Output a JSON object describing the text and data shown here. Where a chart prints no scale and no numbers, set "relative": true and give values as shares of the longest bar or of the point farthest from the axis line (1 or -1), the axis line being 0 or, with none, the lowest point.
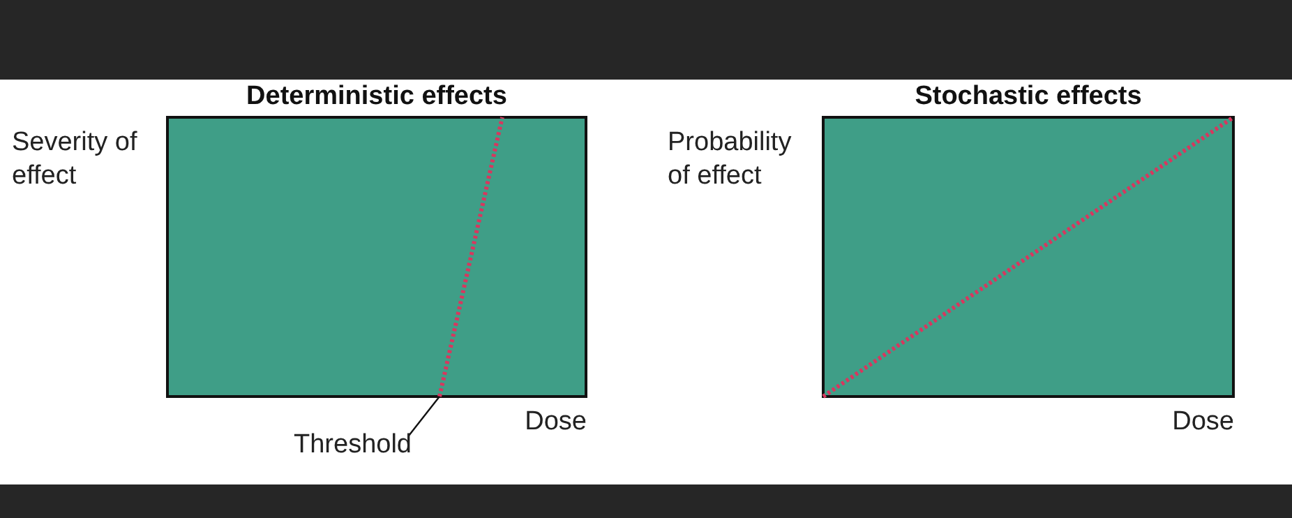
{
  "chart_data": [
    {
      "type": "line",
      "title": "Deterministic effects",
      "xlabel": "Dose",
      "ylabel": "Severity of\neffect",
      "relative": true,
      "line_style": "dotted",
      "annotations": [
        "Threshold"
      ],
      "categories": [
        null,
        null,
        null,
        null,
        null,
        null,
        null,
        null,
        null,
        null,
        null,
        null,
        null,
        null,
        null,
        null,
        null,
        null,
        null,
        null,
        null
      ],
      "series": [
        {
          "color": "#d9365e",
          "values": [
            null,
            null,
            null,
            null,
            null,
            null,
            null,
            null,
            null,
            null,
            null,
            null,
            null,
            0,
            null,
            null,
            1,
            null,
            null,
            null,
            null
          ]
        }
      ]
    },
    {
      "type": "line",
      "title": "Stochastic effects",
      "xlabel": "Dose",
      "ylabel": "Probability\nof effect",
      "relative": true,
      "line_style": "dotted",
      "categories": [
        null,
        null,
        null,
        null,
        null,
        null,
        null,
        null,
        null,
        null,
        null
      ],
      "series": [
        {
          "color": "#d9365e",
          "values": [
            0,
            null,
            null,
            null,
            null,
            null,
            null,
            null,
            null,
            null,
            1
          ]
        }
      ]
    }
  ]
}
